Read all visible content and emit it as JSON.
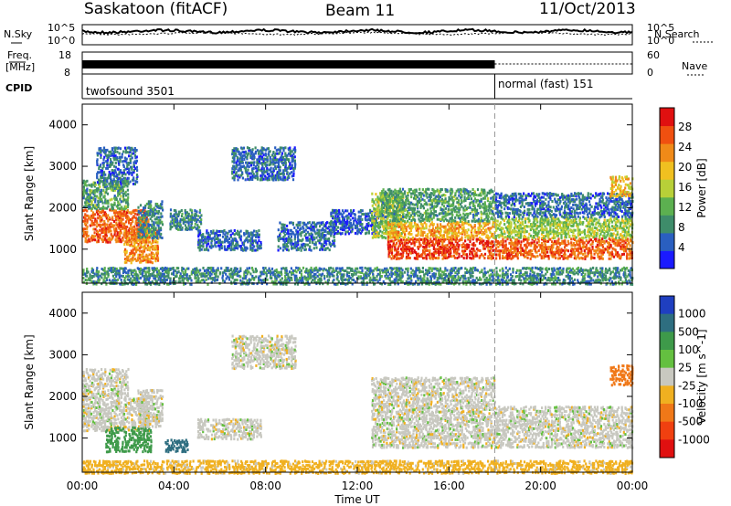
{
  "header": {
    "station": "Saskatoon (fitACF)",
    "beam": "Beam 11",
    "date": "11/Oct/2013"
  },
  "noise_panel": {
    "left_label": "N.Sky",
    "right_label": "N.Search",
    "ticks_left": [
      "10^5",
      "10^0"
    ],
    "ticks_right": [
      "10^5",
      "10^0"
    ]
  },
  "freq_panel": {
    "left_label_1": "Freq.",
    "left_label_2": "[MHz]",
    "right_label": "Nave",
    "ticks_left": [
      "18",
      "8"
    ],
    "ticks_right": [
      "60",
      "0"
    ]
  },
  "cpid": {
    "label": "CPID",
    "modes": [
      {
        "name": "twofsound 3501",
        "start_hour": 0,
        "end_hour": 18
      },
      {
        "name": "normal (fast) 151",
        "start_hour": 18,
        "end_hour": 24
      }
    ]
  },
  "chart_data": [
    {
      "type": "heatmap",
      "title": "",
      "xlabel": "Time UT",
      "ylabel": "Slant Range [km]",
      "xlim": [
        0,
        24
      ],
      "ylim": [
        180,
        4500
      ],
      "x_ticks": [
        "00:00",
        "04:00",
        "08:00",
        "12:00",
        "16:00",
        "20:00",
        "00:00"
      ],
      "y_ticks": [
        1000,
        2000,
        3000,
        4000
      ],
      "colorbar": {
        "label": "Power [dB]",
        "ticks": [
          "4",
          "8",
          "12",
          "16",
          "20",
          "24",
          "28"
        ],
        "range": [
          0,
          30
        ],
        "colors": [
          "#1a1aff",
          "#2a5fc0",
          "#3e8c6a",
          "#5cb050",
          "#b8d038",
          "#f0c020",
          "#f08a18",
          "#f05010",
          "#e01010"
        ]
      },
      "regions": [
        {
          "t0": 0.0,
          "t1": 2.9,
          "r_low": 1200,
          "r_high": 2000,
          "power": 24
        },
        {
          "t0": 0.0,
          "t1": 2.0,
          "r_low": 2000,
          "r_high": 2700,
          "power": 10
        },
        {
          "t0": 1.8,
          "t1": 3.3,
          "r_low": 700,
          "r_high": 1500,
          "power": 22
        },
        {
          "t0": 0.6,
          "t1": 2.4,
          "r_low": 2600,
          "r_high": 3500,
          "power": 6
        },
        {
          "t0": 2.4,
          "t1": 3.5,
          "r_low": 1300,
          "r_high": 2200,
          "power": 8
        },
        {
          "t0": 3.8,
          "t1": 5.2,
          "r_low": 1500,
          "r_high": 2000,
          "power": 8
        },
        {
          "t0": 5.0,
          "t1": 7.8,
          "r_low": 1000,
          "r_high": 1500,
          "power": 6
        },
        {
          "t0": 6.5,
          "t1": 9.3,
          "r_low": 2700,
          "r_high": 3500,
          "power": 6
        },
        {
          "t0": 8.5,
          "t1": 11.0,
          "r_low": 1000,
          "r_high": 1700,
          "power": 6
        },
        {
          "t0": 10.8,
          "t1": 13.0,
          "r_low": 1400,
          "r_high": 2000,
          "power": 5
        },
        {
          "t0": 12.6,
          "t1": 14.0,
          "r_low": 1300,
          "r_high": 2400,
          "power": 14
        },
        {
          "t0": 13.3,
          "t1": 18.0,
          "r_low": 800,
          "r_high": 1300,
          "power": 26
        },
        {
          "t0": 13.3,
          "t1": 18.0,
          "r_low": 1300,
          "r_high": 1700,
          "power": 20
        },
        {
          "t0": 13.0,
          "t1": 18.0,
          "r_low": 1700,
          "r_high": 2500,
          "power": 10
        },
        {
          "t0": 18.0,
          "t1": 24.0,
          "r_low": 800,
          "r_high": 1300,
          "power": 24
        },
        {
          "t0": 18.0,
          "t1": 24.0,
          "r_low": 1300,
          "r_high": 1800,
          "power": 14
        },
        {
          "t0": 18.0,
          "t1": 24.0,
          "r_low": 1800,
          "r_high": 2400,
          "power": 6
        },
        {
          "t0": 23.0,
          "t1": 24.0,
          "r_low": 2300,
          "r_high": 2800,
          "power": 18
        },
        {
          "t0": 0.0,
          "t1": 24.0,
          "r_low": 180,
          "r_high": 600,
          "power": 8
        }
      ]
    },
    {
      "type": "heatmap",
      "title": "",
      "xlabel": "Time UT",
      "ylabel": "Slant Range [km]",
      "xlim": [
        0,
        24
      ],
      "ylim": [
        180,
        4500
      ],
      "x_ticks": [
        "00:00",
        "04:00",
        "08:00",
        "12:00",
        "16:00",
        "20:00",
        "00:00"
      ],
      "y_ticks": [
        1000,
        2000,
        3000,
        4000
      ],
      "colorbar": {
        "label": "Velocity [m s^-1]",
        "ticks": [
          "1000",
          "500",
          "100",
          "25",
          "-25",
          "-100",
          "-500",
          "-1000"
        ],
        "colors": [
          "#1f3fc0",
          "#2e6e80",
          "#3e9a4a",
          "#64c040",
          "#c8c8c0",
          "#f0b020",
          "#f07818",
          "#f04010",
          "#e01010"
        ]
      },
      "regions": [
        {
          "t0": 0.0,
          "t1": 2.9,
          "r_low": 1200,
          "r_high": 2000,
          "velocity": 0
        },
        {
          "t0": 0.0,
          "t1": 2.0,
          "r_low": 2000,
          "r_high": 2700,
          "velocity": 0
        },
        {
          "t0": 1.0,
          "t1": 3.0,
          "r_low": 700,
          "r_high": 1300,
          "velocity": 200
        },
        {
          "t0": 2.4,
          "t1": 3.5,
          "r_low": 1300,
          "r_high": 2200,
          "velocity": 0
        },
        {
          "t0": 3.6,
          "t1": 4.6,
          "r_low": 700,
          "r_high": 1000,
          "velocity": 600
        },
        {
          "t0": 5.0,
          "t1": 7.8,
          "r_low": 1000,
          "r_high": 1500,
          "velocity": 0
        },
        {
          "t0": 6.5,
          "t1": 9.3,
          "r_low": 2700,
          "r_high": 3500,
          "velocity": 0
        },
        {
          "t0": 12.6,
          "t1": 18.0,
          "r_low": 800,
          "r_high": 2500,
          "velocity": 0
        },
        {
          "t0": 18.0,
          "t1": 24.0,
          "r_low": 800,
          "r_high": 1800,
          "velocity": 0
        },
        {
          "t0": 23.0,
          "t1": 24.0,
          "r_low": 2300,
          "r_high": 2800,
          "velocity": -300
        },
        {
          "t0": 0.0,
          "t1": 24.0,
          "r_low": 180,
          "r_high": 500,
          "velocity": -50
        }
      ]
    }
  ]
}
